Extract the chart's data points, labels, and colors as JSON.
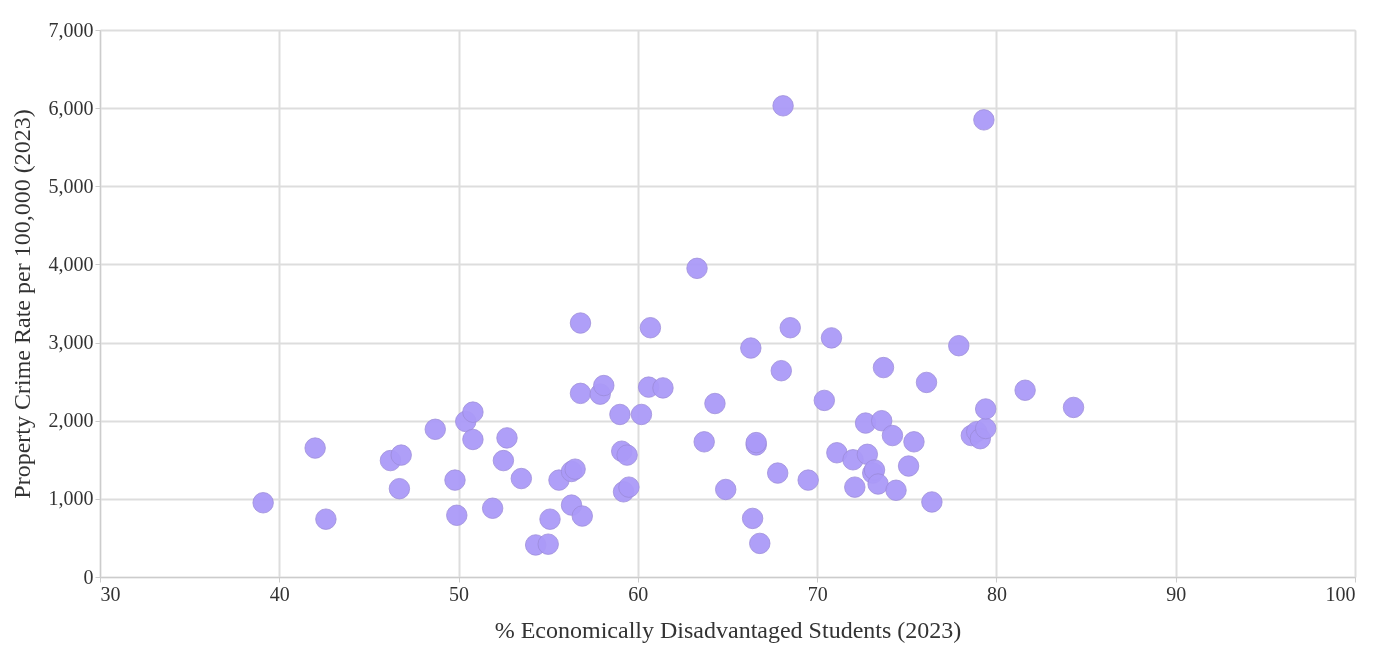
{
  "chart_data": {
    "type": "scatter",
    "xlabel": "% Economically Disadvantaged Students (2023)",
    "ylabel": "Property Crime Rate per 100,000 (2023)",
    "x": [
      39.1,
      42.0,
      42.6,
      46.2,
      46.8,
      46.7,
      48.7,
      49.8,
      49.9,
      50.4,
      50.8,
      50.8,
      51.9,
      52.5,
      52.7,
      53.5,
      54.3,
      55.0,
      55.1,
      55.6,
      56.3,
      56.3,
      56.5,
      56.8,
      56.8,
      56.9,
      57.9,
      58.1,
      59.0,
      59.1,
      59.2,
      59.4,
      59.5,
      60.2,
      60.6,
      60.7,
      61.4,
      63.3,
      63.7,
      64.3,
      64.9,
      66.3,
      66.4,
      66.6,
      66.6,
      66.8,
      67.8,
      68.0,
      68.1,
      68.5,
      69.5,
      70.4,
      70.8,
      71.1,
      72.0,
      72.1,
      72.7,
      72.8,
      73.1,
      73.2,
      73.4,
      73.6,
      73.7,
      74.2,
      74.4,
      75.1,
      75.4,
      76.1,
      76.4,
      77.9,
      78.6,
      78.9,
      79.1,
      79.4,
      79.4,
      79.3,
      81.6,
      84.3
    ],
    "series": [
      {
        "color": "#ab9af8",
        "values": [
          950,
          1650,
          740,
          1490,
          1560,
          1130,
          1890,
          1240,
          790,
          1990,
          2110,
          1760,
          880,
          1490,
          1780,
          1260,
          410,
          420,
          740,
          1240,
          920,
          1350,
          1380,
          3250,
          2350,
          780,
          2340,
          2450,
          2080,
          1610,
          1090,
          1560,
          1150,
          2080,
          2430,
          3190,
          2420,
          3950,
          1730,
          2220,
          1120,
          2930,
          750,
          1690,
          1720,
          430,
          1330,
          2640,
          6030,
          3190,
          1240,
          2260,
          3060,
          1590,
          1500,
          1150,
          1970,
          1570,
          1330,
          1370,
          1190,
          2000,
          2680,
          1810,
          1110,
          1420,
          1730,
          2490,
          960,
          2960,
          1810,
          1860,
          1770,
          1900,
          2150,
          5850,
          2390,
          2170
        ]
      }
    ],
    "xlim": [
      30,
      100
    ],
    "xticks": [
      30,
      40,
      50,
      60,
      70,
      80,
      90,
      100
    ],
    "ylim": [
      0,
      7000
    ],
    "yticks": [
      0,
      {
        "value": 1000,
        "label": "1,000"
      },
      {
        "value": 2000,
        "label": "2,000"
      },
      {
        "value": 3000,
        "label": "3,000"
      },
      {
        "value": 4000,
        "label": "4,000"
      },
      {
        "value": 5000,
        "label": "5,000"
      },
      {
        "value": 6000,
        "label": "6,000"
      },
      {
        "value": 7000,
        "label": "7,000"
      }
    ],
    "grid": true,
    "marker": "circle"
  }
}
